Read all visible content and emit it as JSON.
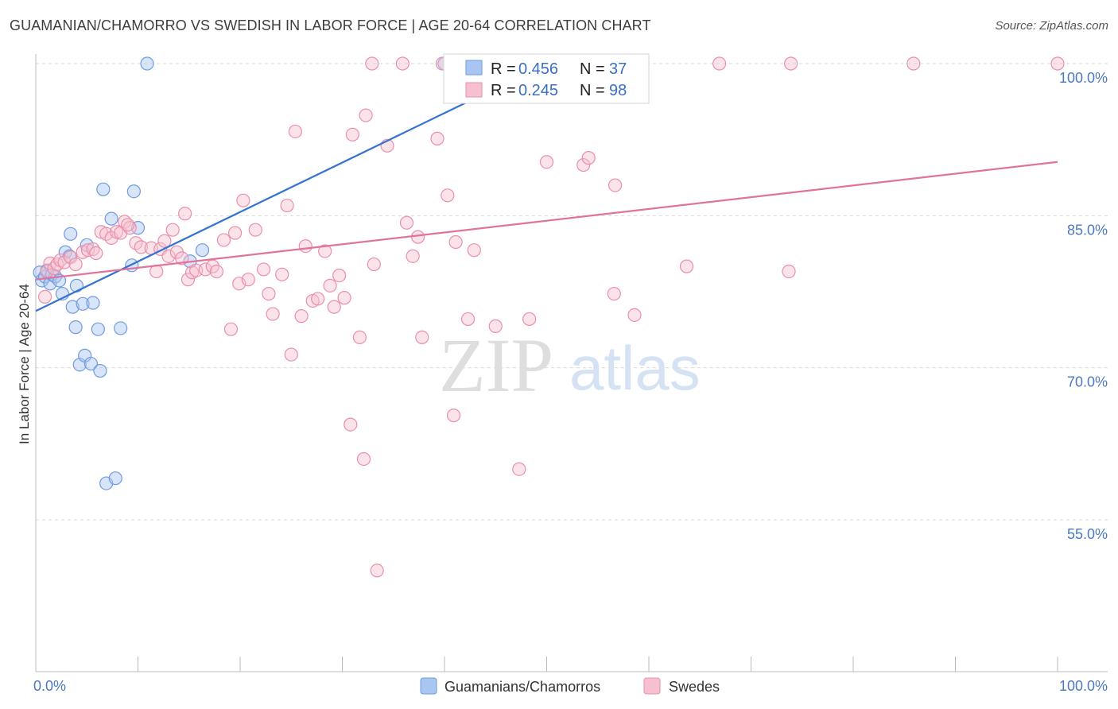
{
  "title": "GUAMANIAN/CHAMORRO VS SWEDISH IN LABOR FORCE | AGE 20-64 CORRELATION CHART",
  "source": "Source: ZipAtlas.com",
  "watermark": {
    "zip": "ZIP",
    "atlas": "atlas"
  },
  "chart_data": {
    "type": "scatter",
    "xlabel": "",
    "ylabel": "In Labor Force | Age 20-64",
    "xlim": [
      0,
      100
    ],
    "ylim": [
      40,
      102
    ],
    "x_tick_labels": {
      "left": "0.0%",
      "right": "100.0%"
    },
    "y_ticks": [
      {
        "value": 100,
        "label": "100.0%"
      },
      {
        "value": 85,
        "label": "85.0%"
      },
      {
        "value": 70,
        "label": "70.0%"
      },
      {
        "value": 55,
        "label": "55.0%"
      }
    ],
    "grid": true,
    "legend_position": "top-center",
    "stats": [
      {
        "r_label": "R = ",
        "r": "0.456",
        "n_label": "N = ",
        "n": "37"
      },
      {
        "r_label": "R = ",
        "r": "0.245",
        "n_label": "N = ",
        "n": "98"
      }
    ],
    "series": [
      {
        "name": "Guamanians/Chamorros",
        "color": "#6f9be0",
        "fill": "#a9c6f0",
        "line_color": "#3473d1",
        "trend": {
          "x1": 0,
          "y1": 75.6,
          "x2": 50,
          "y2": 100
        },
        "points": [
          [
            0.4,
            79.4
          ],
          [
            0.6,
            78.6
          ],
          [
            0.9,
            79.0
          ],
          [
            1.1,
            79.6
          ],
          [
            1.4,
            78.3
          ],
          [
            1.6,
            79.2
          ],
          [
            1.9,
            79.0
          ],
          [
            2.3,
            78.6
          ],
          [
            2.6,
            77.3
          ],
          [
            2.9,
            81.4
          ],
          [
            3.3,
            81.0
          ],
          [
            3.4,
            83.2
          ],
          [
            3.6,
            76.0
          ],
          [
            3.9,
            74.0
          ],
          [
            4.0,
            78.1
          ],
          [
            4.3,
            70.3
          ],
          [
            4.6,
            76.3
          ],
          [
            4.8,
            71.2
          ],
          [
            5.0,
            82.1
          ],
          [
            5.4,
            70.4
          ],
          [
            5.6,
            76.4
          ],
          [
            6.1,
            73.8
          ],
          [
            6.3,
            69.7
          ],
          [
            6.6,
            87.6
          ],
          [
            6.9,
            58.6
          ],
          [
            7.4,
            84.7
          ],
          [
            7.8,
            59.1
          ],
          [
            8.3,
            73.9
          ],
          [
            9.4,
            80.1
          ],
          [
            9.6,
            87.4
          ],
          [
            10.0,
            83.8
          ],
          [
            10.9,
            100
          ],
          [
            15.1,
            80.5
          ],
          [
            16.3,
            81.6
          ],
          [
            40.0,
            100
          ],
          [
            48.4,
            100
          ],
          [
            50.3,
            100
          ]
        ]
      },
      {
        "name": "Swedes",
        "color": "#ea8faa",
        "fill": "#f6c0d0",
        "line_color": "#e0739b",
        "trend": {
          "x1": 0,
          "y1": 78.7,
          "x2": 100,
          "y2": 90.3
        },
        "points": [
          [
            0.9,
            77.0
          ],
          [
            1.1,
            79.5
          ],
          [
            1.4,
            80.3
          ],
          [
            1.8,
            79.8
          ],
          [
            2.1,
            80.2
          ],
          [
            2.4,
            80.6
          ],
          [
            2.8,
            80.4
          ],
          [
            3.4,
            80.9
          ],
          [
            3.9,
            80.2
          ],
          [
            4.6,
            81.4
          ],
          [
            5.1,
            81.6
          ],
          [
            5.6,
            81.7
          ],
          [
            5.9,
            81.3
          ],
          [
            6.4,
            83.4
          ],
          [
            6.9,
            83.2
          ],
          [
            7.4,
            82.8
          ],
          [
            7.9,
            83.4
          ],
          [
            8.3,
            83.3
          ],
          [
            8.7,
            84.4
          ],
          [
            9.2,
            83.8
          ],
          [
            9.8,
            82.3
          ],
          [
            10.3,
            81.9
          ],
          [
            11.3,
            81.8
          ],
          [
            11.8,
            79.5
          ],
          [
            12.2,
            81.7
          ],
          [
            12.6,
            82.5
          ],
          [
            13.0,
            81.0
          ],
          [
            13.4,
            83.6
          ],
          [
            13.8,
            81.4
          ],
          [
            14.3,
            80.8
          ],
          [
            14.9,
            78.7
          ],
          [
            15.3,
            79.4
          ],
          [
            15.7,
            79.6
          ],
          [
            16.6,
            79.7
          ],
          [
            17.3,
            80.0
          ],
          [
            17.7,
            79.5
          ],
          [
            18.4,
            82.6
          ],
          [
            19.1,
            73.8
          ],
          [
            19.5,
            83.3
          ],
          [
            19.9,
            78.3
          ],
          [
            20.3,
            86.5
          ],
          [
            20.8,
            78.7
          ],
          [
            21.5,
            83.6
          ],
          [
            22.3,
            79.7
          ],
          [
            22.8,
            77.3
          ],
          [
            23.2,
            75.3
          ],
          [
            24.1,
            79.2
          ],
          [
            24.6,
            86.0
          ],
          [
            25.0,
            71.3
          ],
          [
            25.4,
            93.3
          ],
          [
            26.0,
            75.1
          ],
          [
            26.4,
            82.0
          ],
          [
            27.1,
            76.6
          ],
          [
            27.6,
            76.8
          ],
          [
            28.3,
            81.5
          ],
          [
            28.8,
            78.1
          ],
          [
            29.2,
            76.0
          ],
          [
            29.7,
            79.1
          ],
          [
            30.2,
            76.9
          ],
          [
            30.8,
            64.4
          ],
          [
            31.0,
            93.0
          ],
          [
            31.7,
            73.0
          ],
          [
            32.1,
            61.0
          ],
          [
            32.3,
            94.9
          ],
          [
            33.1,
            80.2
          ],
          [
            33.4,
            50.0
          ],
          [
            34.4,
            91.9
          ],
          [
            36.3,
            84.3
          ],
          [
            36.9,
            81.0
          ],
          [
            37.4,
            82.9
          ],
          [
            39.3,
            92.6
          ],
          [
            40.3,
            87.0
          ],
          [
            40.9,
            65.3
          ],
          [
            41.1,
            82.4
          ],
          [
            42.3,
            74.8
          ],
          [
            42.9,
            81.6
          ],
          [
            45.0,
            74.1
          ],
          [
            47.3,
            60.0
          ],
          [
            48.3,
            74.8
          ],
          [
            50.0,
            90.3
          ],
          [
            53.6,
            90.0
          ],
          [
            54.1,
            90.7
          ],
          [
            56.6,
            77.3
          ],
          [
            56.7,
            88.0
          ],
          [
            58.6,
            75.2
          ],
          [
            63.7,
            80.0
          ],
          [
            66.9,
            100
          ],
          [
            73.7,
            79.5
          ],
          [
            73.9,
            100
          ],
          [
            85.9,
            100
          ],
          [
            100,
            100
          ],
          [
            49.4,
            100
          ],
          [
            32.9,
            100
          ],
          [
            35.9,
            100
          ],
          [
            39.8,
            100
          ],
          [
            37.8,
            73.0
          ],
          [
            14.6,
            85.2
          ],
          [
            9.0,
            84.1
          ]
        ]
      }
    ]
  }
}
